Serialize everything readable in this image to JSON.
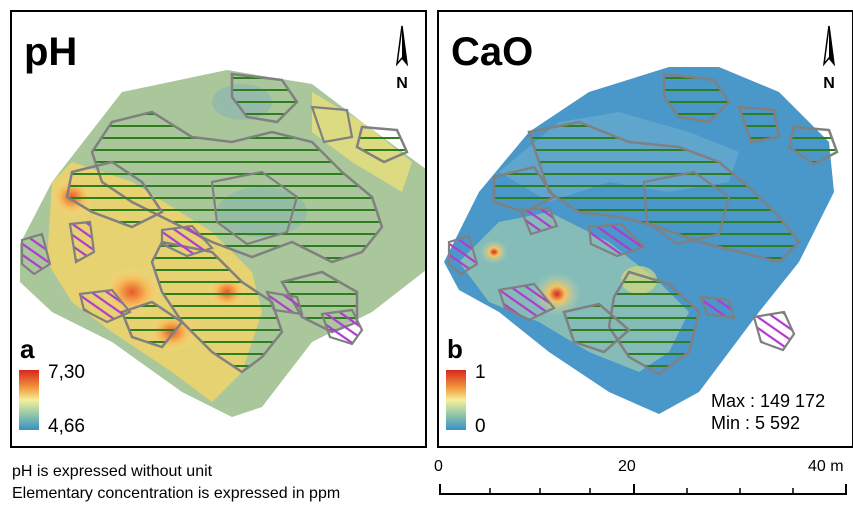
{
  "panel_a": {
    "title": "pH",
    "letter": "a",
    "legend_max": "7,30",
    "legend_min": "4,66",
    "north_label": "N"
  },
  "panel_b": {
    "title": "CaO",
    "letter": "b",
    "legend_max": "1",
    "legend_min": "0",
    "north_label": "N",
    "stats_max": "Max : 149 172",
    "stats_min": "Min : 5 592"
  },
  "captions": {
    "line1": "pH is expressed without unit",
    "line2": "Elementary concentration is expressed in ppm"
  },
  "scale": {
    "label_0": "0",
    "label_20": "20",
    "label_40": "40 m"
  },
  "colors": {
    "hatch_green": "#2e7d1e",
    "hatch_purple": "#b03ad0",
    "outline_gray": "#808080",
    "ramp_high": "#d7261e",
    "ramp_mid": "#f4f09a",
    "ramp_low": "#3a8fc7"
  }
}
